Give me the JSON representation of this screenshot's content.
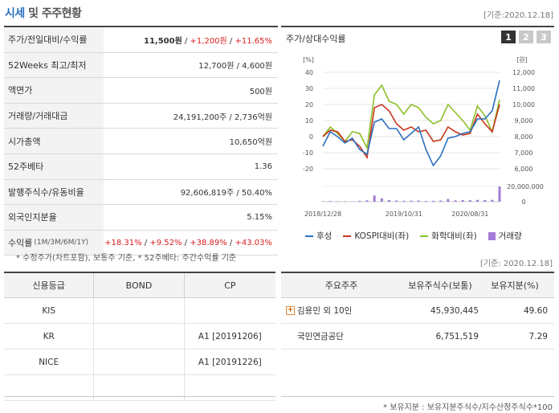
{
  "header": {
    "title_a": "시세",
    "title_b": "및 주주현황",
    "as_of": "[기준:2020.12.18]"
  },
  "info": {
    "price": {
      "label": "주가/전일대비/수익률",
      "value": "11,500원",
      "change": "+1,200원",
      "pct": "+11.65%"
    },
    "weeks52": {
      "label": "52Weeks 최고/최저",
      "value": "12,700원 / 4,600원"
    },
    "par": {
      "label": "액면가",
      "value": "500원"
    },
    "volume": {
      "label": "거래량/거래대금",
      "value": "24,191,200주 / 2,736억원"
    },
    "mcap": {
      "label": "시가총액",
      "value": "10,650억원"
    },
    "beta": {
      "label": "52주베타",
      "value": "1.36"
    },
    "shares": {
      "label": "발행주식수/유동비율",
      "value": "92,606,819주 / 50.40%"
    },
    "foreign": {
      "label": "외국인지분율",
      "value": "5.15%"
    },
    "returns": {
      "label": "수익률",
      "label_sub": "(1M/3M/6M/1Y)",
      "r1": "+18.31%",
      "r2": "+9.52%",
      "r3": "+38.89%",
      "r4": "+43.03%"
    }
  },
  "note": "* 수정주가(차트포함), 보통주 기준, * 52주베타: 주간수익률 기준",
  "chart_panel": {
    "title": "주가/상대수익률",
    "tabs": [
      "1",
      "2",
      "3"
    ],
    "active_tab": "1",
    "as_of": "[기준: 2020.12.18]"
  },
  "chart_data": {
    "type": "line",
    "left_axis_unit": "[%]",
    "right_axis_unit": "[원]",
    "left_ticks": [
      40,
      30,
      20,
      10,
      0,
      -10,
      -20
    ],
    "right_ticks": [
      "12,000",
      "11,000",
      "10,000",
      "9,000",
      "8,000",
      "7,000",
      "6,000"
    ],
    "volume_ticks": [
      "20,000,000",
      "0"
    ],
    "x_ticks": [
      "2018/12/28",
      "2019/10/31",
      "2020/08/31"
    ],
    "ylim_left": [
      -20,
      40
    ],
    "colors": {
      "stock": "#2a6fc2",
      "kospi": "#c8351c",
      "sector": "#8cbf2a",
      "volume": "#a37bd8"
    },
    "series": [
      {
        "name": "후성",
        "values": [
          -6,
          3,
          0,
          -4,
          -1,
          -8,
          -11,
          9,
          11,
          5,
          5,
          -2,
          2,
          6,
          -8,
          -18,
          -12,
          -1,
          0,
          2,
          3,
          11,
          11,
          16,
          35
        ]
      },
      {
        "name": "KOSPI대비(좌)",
        "values": [
          0,
          4,
          3,
          -3,
          -2,
          -6,
          -13,
          18,
          20,
          16,
          8,
          4,
          6,
          3,
          4,
          -3,
          -2,
          6,
          3,
          1,
          2,
          14,
          8,
          3,
          20
        ]
      },
      {
        "name": "화학대비(좌)",
        "values": [
          0,
          6,
          2,
          -3,
          3,
          2,
          -7,
          26,
          32,
          22,
          20,
          14,
          20,
          18,
          12,
          8,
          10,
          20,
          15,
          10,
          4,
          19,
          13,
          3,
          23
        ]
      }
    ],
    "volume": {
      "name": "거래량",
      "values": [
        0.4,
        0.6,
        0.3,
        0.3,
        0.2,
        0.8,
        1.2,
        5.5,
        3.0,
        1.5,
        1.0,
        0.8,
        0.9,
        1.0,
        0.6,
        0.8,
        1.0,
        2.4,
        1.2,
        1.4,
        1.3,
        1.6,
        1.5,
        1.6,
        13.5
      ]
    }
  },
  "credit": {
    "headers": [
      "신용등급",
      "BOND",
      "CP"
    ],
    "rows": [
      {
        "agency": "KIS",
        "bond": "",
        "cp": ""
      },
      {
        "agency": "KR",
        "bond": "",
        "cp": "A1  [20191206]"
      },
      {
        "agency": "NICE",
        "bond": "",
        "cp": "A1  [20191226]"
      },
      {
        "agency": "",
        "bond": "",
        "cp": ""
      }
    ]
  },
  "holders": {
    "headers": [
      "주요주주",
      "보유주식수(보통)",
      "보유지분(%)"
    ],
    "rows": [
      {
        "name": "김용민 외 10인",
        "shares": "45,930,445",
        "pct": "49.60",
        "expandable": true
      },
      {
        "name": "국민연금공단",
        "shares": "6,751,519",
        "pct": "7.29",
        "expandable": false
      }
    ],
    "footnote": "* 보유지분 : 보유지분주식수/지수산정주식수*100"
  }
}
